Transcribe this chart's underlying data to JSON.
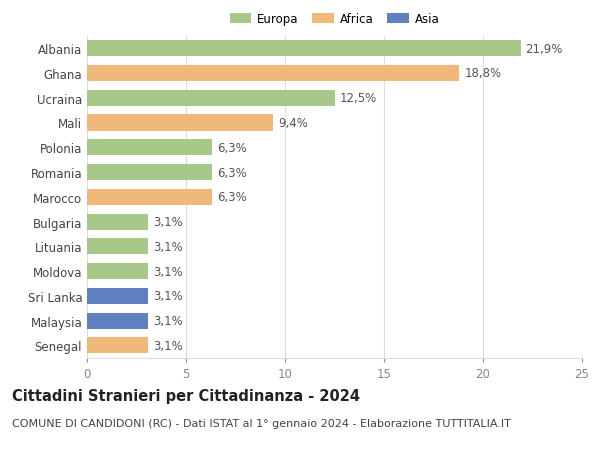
{
  "categories": [
    "Albania",
    "Ghana",
    "Ucraina",
    "Mali",
    "Polonia",
    "Romania",
    "Marocco",
    "Bulgaria",
    "Lituania",
    "Moldova",
    "Sri Lanka",
    "Malaysia",
    "Senegal"
  ],
  "values": [
    21.9,
    18.8,
    12.5,
    9.4,
    6.3,
    6.3,
    6.3,
    3.1,
    3.1,
    3.1,
    3.1,
    3.1,
    3.1
  ],
  "labels": [
    "21,9%",
    "18,8%",
    "12,5%",
    "9,4%",
    "6,3%",
    "6,3%",
    "6,3%",
    "3,1%",
    "3,1%",
    "3,1%",
    "3,1%",
    "3,1%",
    "3,1%"
  ],
  "continents": [
    "Europa",
    "Africa",
    "Europa",
    "Africa",
    "Europa",
    "Europa",
    "Africa",
    "Europa",
    "Europa",
    "Europa",
    "Asia",
    "Asia",
    "Africa"
  ],
  "colors": {
    "Europa": "#a8c88a",
    "Africa": "#f0b87a",
    "Asia": "#6080c0"
  },
  "legend_labels": [
    "Europa",
    "Africa",
    "Asia"
  ],
  "xlim": [
    0,
    25
  ],
  "xticks": [
    0,
    5,
    10,
    15,
    20,
    25
  ],
  "title": "Cittadini Stranieri per Cittadinanza - 2024",
  "subtitle": "COMUNE DI CANDIDONI (RC) - Dati ISTAT al 1° gennaio 2024 - Elaborazione TUTTITALIA.IT",
  "background_color": "#ffffff",
  "grid_color": "#dddddd",
  "bar_height": 0.65,
  "label_fontsize": 8.5,
  "tick_fontsize": 8.5,
  "title_fontsize": 10.5,
  "subtitle_fontsize": 8.0
}
